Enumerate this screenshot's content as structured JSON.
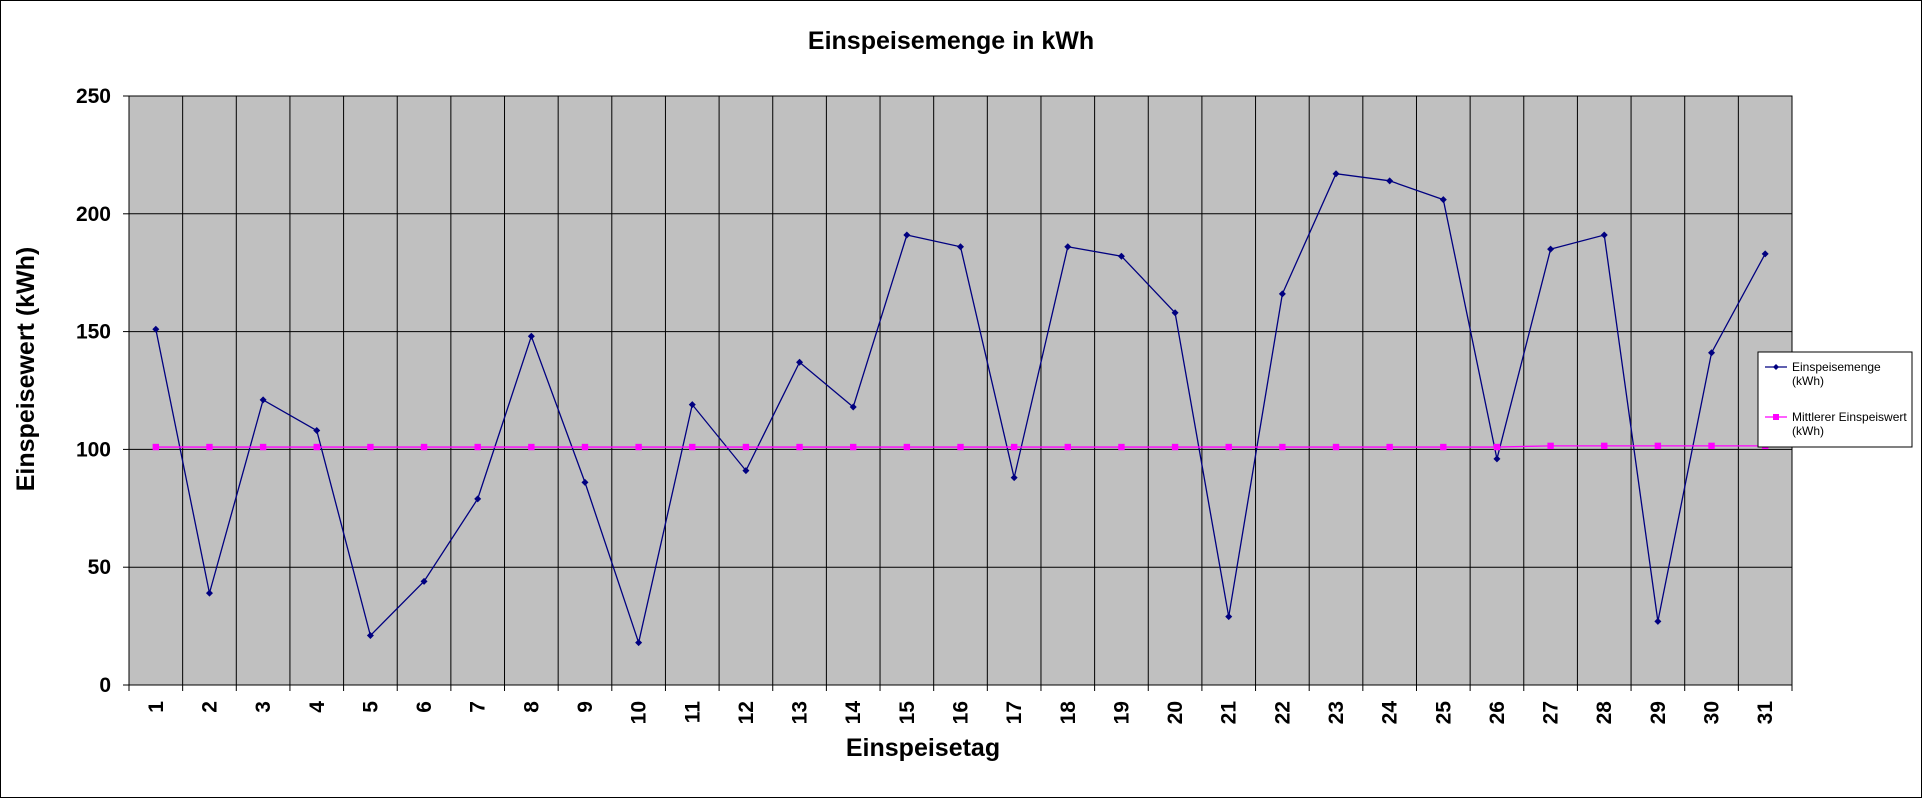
{
  "chart_data": {
    "type": "line",
    "title": "Einspeisemenge in kWh",
    "xlabel": "Einspeisetag",
    "ylabel": "Einspeisewert  (kWh)",
    "x": [
      1,
      2,
      3,
      4,
      5,
      6,
      7,
      8,
      9,
      10,
      11,
      12,
      13,
      14,
      15,
      16,
      17,
      18,
      19,
      20,
      21,
      22,
      23,
      24,
      25,
      26,
      27,
      28,
      29,
      30,
      31
    ],
    "ylim": [
      0,
      250
    ],
    "yticks": [
      0,
      50,
      100,
      150,
      200,
      250
    ],
    "grid": true,
    "legend_position": "right",
    "plot_background": "#C0C0C0",
    "series": [
      {
        "name": "Einspeisemenge (kWh)",
        "legend_lines": [
          "Einspeisemenge",
          "(kWh)"
        ],
        "color": "#000080",
        "marker": "diamond",
        "values": [
          151,
          39,
          121,
          108,
          21,
          44,
          79,
          148,
          86,
          18,
          119,
          91,
          137,
          118,
          191,
          186,
          88,
          186,
          182,
          158,
          29,
          166,
          217,
          214,
          206,
          96,
          185,
          191,
          27,
          141,
          183
        ]
      },
      {
        "name": "Mittlerer Einspeiswert (kWh)",
        "legend_lines": [
          "Mittlerer Einspeiswert",
          "(kWh)"
        ],
        "color": "#FF00FF",
        "marker": "square",
        "values": [
          101,
          101,
          101,
          101,
          101,
          101,
          101,
          101,
          101,
          101,
          101,
          101,
          101,
          101,
          101,
          101,
          101,
          101,
          101,
          101,
          101,
          101,
          101,
          101,
          101,
          101,
          101.5,
          101.5,
          101.5,
          101.5,
          101.5
        ]
      }
    ]
  }
}
